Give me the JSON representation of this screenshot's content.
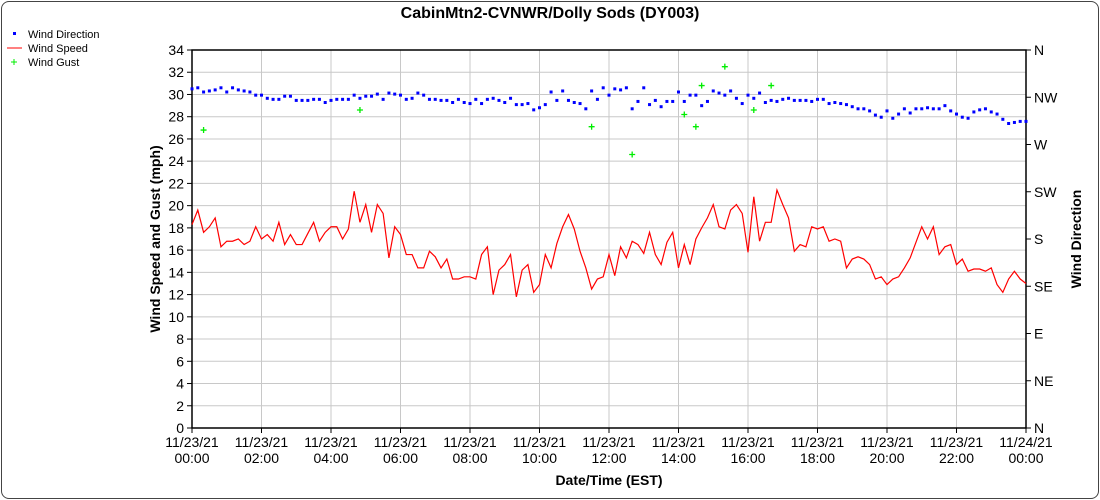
{
  "chart_data": {
    "type": "line",
    "title": "CabinMtn2-CVNWR/Dolly Sods (DY003)",
    "xlabel": "Date/Time (EST)",
    "ylabel": "Wind Speed and Gust (mph)",
    "y2label": "Wind Direction",
    "ylim": [
      0,
      34
    ],
    "y2lim": [
      0,
      360
    ],
    "xlim_hours": [
      0,
      24
    ],
    "grid": true,
    "legend_position": "top-left",
    "yticks": [
      "0",
      "2",
      "4",
      "6",
      "8",
      "10",
      "12",
      "14",
      "16",
      "18",
      "20",
      "22",
      "24",
      "26",
      "28",
      "30",
      "32",
      "34"
    ],
    "y2ticks": [
      "N",
      "NE",
      "E",
      "SE",
      "S",
      "SW",
      "W",
      "NW",
      "N"
    ],
    "xticks": [
      {
        "date": "11/23/21",
        "time": "00:00"
      },
      {
        "date": "11/23/21",
        "time": "02:00"
      },
      {
        "date": "11/23/21",
        "time": "04:00"
      },
      {
        "date": "11/23/21",
        "time": "06:00"
      },
      {
        "date": "11/23/21",
        "time": "08:00"
      },
      {
        "date": "11/23/21",
        "time": "10:00"
      },
      {
        "date": "11/23/21",
        "time": "12:00"
      },
      {
        "date": "11/23/21",
        "time": "14:00"
      },
      {
        "date": "11/23/21",
        "time": "16:00"
      },
      {
        "date": "11/23/21",
        "time": "18:00"
      },
      {
        "date": "11/23/21",
        "time": "20:00"
      },
      {
        "date": "11/23/21",
        "time": "22:00"
      },
      {
        "date": "11/24/21",
        "time": "00:00"
      }
    ],
    "interval_minutes": 10,
    "series": [
      {
        "name": "Wind Direction",
        "color": "#0000ff",
        "marker": "dot",
        "axis": "right",
        "unit": "degrees",
        "values": [
          323,
          324,
          320,
          321,
          322,
          324,
          320,
          324,
          322,
          321,
          320,
          317,
          317,
          314,
          313,
          313,
          316,
          316,
          312,
          312,
          312,
          313,
          313,
          310,
          312,
          313,
          313,
          313,
          317,
          314,
          316,
          316,
          318,
          313,
          319,
          318,
          317,
          313,
          314,
          319,
          317,
          313,
          313,
          312,
          312,
          310,
          313,
          310,
          309,
          313,
          309,
          313,
          314,
          312,
          310,
          314,
          308,
          308,
          309,
          303,
          305,
          308,
          320,
          312,
          321,
          312,
          310,
          309,
          304,
          321,
          313,
          324,
          317,
          323,
          322,
          324,
          304,
          311,
          324,
          308,
          312,
          306,
          311,
          311,
          320,
          311,
          317,
          317,
          307,
          311,
          321,
          319,
          317,
          321,
          314,
          309,
          317,
          314,
          319,
          310,
          312,
          311,
          313,
          314,
          312,
          312,
          312,
          311,
          313,
          313,
          309,
          310,
          309,
          308,
          306,
          304,
          304,
          302,
          298,
          296,
          302,
          295,
          299,
          304,
          300,
          304,
          304,
          305,
          304,
          304,
          307,
          302,
          299,
          296,
          295,
          301,
          303,
          304,
          301,
          299,
          294,
          290,
          291,
          292,
          292
        ]
      },
      {
        "name": "Wind Speed",
        "color": "#ff0000",
        "marker": "line",
        "axis": "left",
        "unit": "mph",
        "values": [
          18.3,
          19.6,
          17.6,
          18.1,
          18.9,
          16.3,
          16.8,
          16.8,
          17.0,
          16.5,
          16.8,
          18.1,
          17.0,
          17.4,
          16.8,
          18.5,
          16.5,
          17.4,
          16.5,
          16.5,
          17.5,
          18.5,
          16.8,
          17.6,
          18.1,
          18.1,
          17.0,
          17.9,
          21.3,
          18.5,
          20.1,
          17.6,
          20.1,
          19.3,
          15.3,
          18.1,
          17.4,
          15.6,
          15.6,
          14.4,
          14.4,
          15.9,
          15.4,
          14.4,
          15.2,
          13.4,
          13.4,
          13.6,
          13.6,
          13.4,
          15.6,
          16.3,
          12.0,
          14.2,
          14.7,
          15.6,
          11.8,
          14.2,
          14.7,
          12.2,
          12.9,
          15.6,
          14.4,
          16.6,
          18.1,
          19.2,
          17.9,
          15.9,
          14.4,
          12.5,
          13.4,
          13.6,
          15.6,
          13.7,
          16.3,
          15.3,
          16.8,
          16.5,
          15.7,
          17.6,
          15.6,
          14.7,
          16.7,
          17.6,
          14.4,
          16.5,
          14.7,
          17.0,
          18.0,
          18.9,
          20.1,
          18.1,
          17.9,
          19.6,
          20.1,
          19.3,
          15.8,
          20.8,
          16.8,
          18.5,
          18.5,
          21.4,
          20.1,
          18.9,
          15.9,
          16.5,
          16.3,
          18.1,
          17.9,
          18.1,
          16.8,
          17.0,
          16.8,
          14.4,
          15.2,
          15.4,
          15.2,
          14.7,
          13.4,
          13.6,
          12.9,
          13.4,
          13.6,
          14.4,
          15.3,
          16.7,
          18.1,
          17.0,
          18.1,
          15.6,
          16.3,
          16.5,
          14.7,
          15.2,
          14.1,
          14.3,
          14.3,
          14.1,
          14.4,
          12.9,
          12.2,
          13.4,
          14.1,
          13.4,
          13.0
        ]
      },
      {
        "name": "Wind Gust",
        "color": "#00ee00",
        "marker": "plus",
        "axis": "left",
        "unit": "mph",
        "points": [
          {
            "time": "00:20",
            "value": 26.8
          },
          {
            "time": "04:50",
            "value": 28.6
          },
          {
            "time": "11:30",
            "value": 27.1
          },
          {
            "time": "12:40",
            "value": 24.6
          },
          {
            "time": "14:10",
            "value": 28.2
          },
          {
            "time": "14:30",
            "value": 27.1
          },
          {
            "time": "14:40",
            "value": 30.8
          },
          {
            "time": "15:20",
            "value": 32.5
          },
          {
            "time": "16:10",
            "value": 28.6
          },
          {
            "time": "16:40",
            "value": 30.8
          }
        ]
      }
    ]
  }
}
